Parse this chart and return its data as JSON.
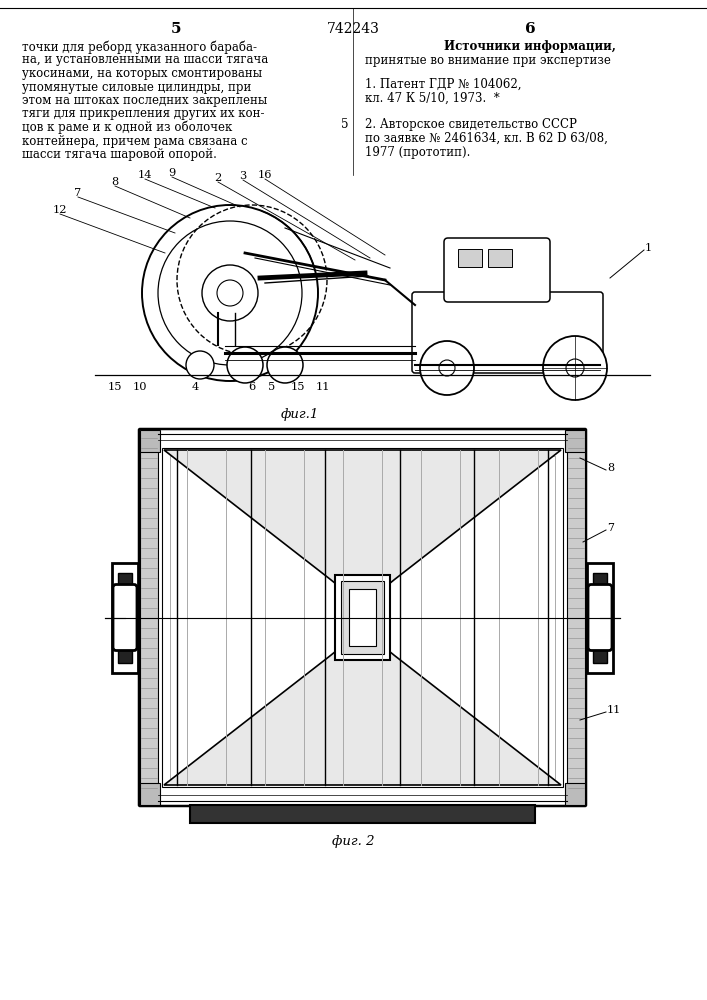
{
  "bg_color": "#ffffff",
  "page_width": 7.07,
  "page_height": 10.0,
  "header_left_num": "5",
  "header_center_num": "742243",
  "header_right_num": "6",
  "header_font_size": 11,
  "left_text_lines": [
    "точки для реборд указанного бараба-",
    "на, и установленными на шасси тягача",
    "укосинами, на которых смонтированы",
    "упомянутые силовые цилиндры, при",
    "этом на штоках последних закреплены",
    "тяги для прикрепления других их кон-",
    "цов к раме и к одной из оболочек",
    "контейнера, причем рама связана с",
    "шасси тягача шаровой опорой."
  ],
  "right_header": "Источники информации,",
  "right_subheader": "принятые во внимание при экспертизе",
  "right_ref1_line1": "1. Патент ГДР № 104062,",
  "right_ref1_line2": "кл. 47 К 5/10, 1973.  *",
  "right_ref2_line1": "2. Авторское свидетельство СССР",
  "right_ref2_line2": "по заявке № 2461634, кл. В 62 D 63/08,",
  "right_ref2_line3": "1977 (прототип).",
  "fig1_caption": "фиг.1",
  "fig2_caption": "фиг. 2",
  "side_marker_5": "5",
  "text_font_size": 8.5,
  "caption_font_size": 9.5
}
